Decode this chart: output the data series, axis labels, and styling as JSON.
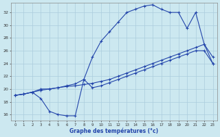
{
  "xlabel": "Graphe des températures (°c)",
  "background_color": "#cce8f0",
  "grid_color": "#aaccdd",
  "line_color": "#2244aa",
  "yticks": [
    16,
    18,
    20,
    22,
    24,
    26,
    28,
    30,
    32
  ],
  "xticks": [
    0,
    1,
    2,
    3,
    4,
    5,
    6,
    7,
    8,
    9,
    10,
    11,
    12,
    13,
    14,
    15,
    16,
    17,
    18,
    19,
    20,
    21,
    22,
    23
  ],
  "series_max_x": [
    0,
    1,
    2,
    3,
    4,
    5,
    6,
    7,
    8,
    9,
    10,
    11,
    12,
    13,
    14,
    15,
    16,
    17,
    18,
    19,
    20,
    21,
    22,
    23
  ],
  "series_max_y": [
    19.0,
    19.2,
    19.5,
    20.0,
    20.0,
    20.2,
    20.5,
    20.8,
    21.5,
    25.0,
    27.5,
    29.0,
    30.5,
    32.0,
    32.5,
    33.0,
    33.2,
    32.5,
    32.0,
    32.0,
    29.5,
    32.0,
    27.0,
    25.0
  ],
  "series_mid_x": [
    0,
    1,
    2,
    3,
    4,
    5,
    6,
    7,
    8,
    9,
    10,
    11,
    12,
    13,
    14,
    15,
    16,
    17,
    18,
    19,
    20,
    21,
    22,
    23
  ],
  "series_mid_y": [
    19.0,
    19.2,
    19.5,
    19.8,
    20.0,
    20.2,
    20.4,
    20.5,
    20.7,
    20.9,
    21.2,
    21.5,
    22.0,
    22.5,
    23.0,
    23.5,
    24.0,
    24.5,
    25.0,
    25.5,
    26.0,
    26.5,
    27.0,
    24.0
  ],
  "series_min_x": [
    0,
    1,
    2,
    3,
    4,
    5,
    6,
    7,
    8,
    9,
    10,
    11,
    12,
    13,
    14,
    15,
    16,
    17,
    18,
    19,
    20,
    21,
    22,
    23
  ],
  "series_min_y": [
    19.0,
    19.2,
    19.5,
    18.5,
    16.5,
    16.0,
    15.8,
    15.8,
    21.5,
    20.2,
    20.5,
    21.0,
    21.5,
    22.0,
    22.5,
    23.0,
    23.5,
    24.0,
    24.5,
    25.0,
    25.5,
    26.0,
    26.0,
    24.0
  ]
}
